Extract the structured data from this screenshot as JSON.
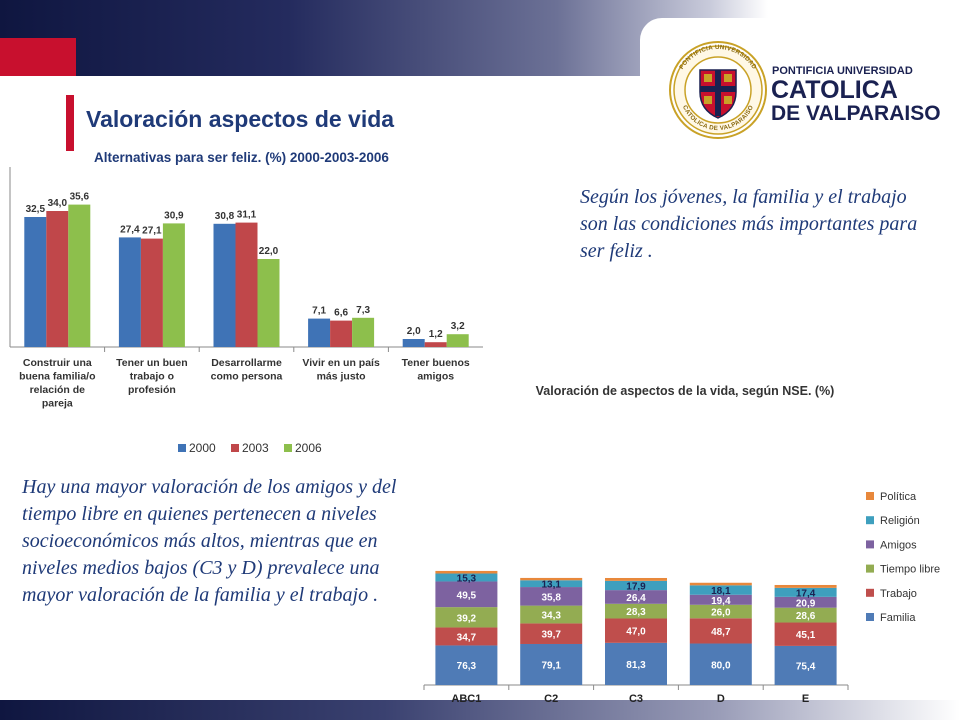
{
  "slide": {
    "title": "Valoración aspectos de vida",
    "paragraph_1": "Según los jóvenes, la familia y el trabajo son las condiciones más importantes para ser feliz .",
    "paragraph_2": "Hay una mayor valoración de los amigos y del tiempo libre en quienes pertenecen a niveles socioeconómicos más altos, mientras que en niveles medios bajos  (C3 y D) prevalece una mayor valoración de la familia y el trabajo ."
  },
  "logo": {
    "line_1": "PONTIFICIA UNIVERSIDAD",
    "line_2": "CATOLICA",
    "line_3": "DE VALPARAISO",
    "seal_text_top": "PONTIFICIA UNIVERSIDAD",
    "seal_text_bottom": "CATOLICA DE VALPARAISO",
    "colors": {
      "red": "#c8102e",
      "gold": "#c9a227",
      "navy": "#1a2151"
    }
  },
  "colors": {
    "accent_red": "#c8102e",
    "title_blue": "#1f3a78",
    "s2000": "#3f73b6",
    "s2003": "#c0474a",
    "s2006": "#8dbf4c",
    "familia": "#4f7bb6",
    "trabajo": "#bf4e4c",
    "tiempo_libre": "#93ac52",
    "amigos": "#7d62a0",
    "religion": "#3e9fbe",
    "politica": "#e8883b"
  },
  "chart_data": [
    {
      "type": "bar",
      "title": "Alternativas para ser feliz. (%) 2000-2003-2006",
      "categories": [
        [
          "Construir una",
          "buena familia/o",
          "relación de",
          "pareja"
        ],
        [
          "Tener un buen",
          "trabajo o",
          "profesión"
        ],
        [
          "Desarrollarme",
          "como persona"
        ],
        [
          "Vivir en un país",
          "más justo"
        ],
        [
          "Tener buenos",
          "amigos"
        ]
      ],
      "series": [
        {
          "name": "2000",
          "values": [
            32.5,
            27.4,
            30.8,
            7.1,
            2.0
          ],
          "labels": [
            "32,5",
            "27,4",
            "30,8",
            "7,1",
            "2,0"
          ]
        },
        {
          "name": "2003",
          "values": [
            34.0,
            27.1,
            31.1,
            6.6,
            1.2
          ],
          "labels": [
            "34,0",
            "27,1",
            "31,1",
            "6,6",
            "1,2"
          ]
        },
        {
          "name": "2006",
          "values": [
            35.6,
            30.9,
            22.0,
            7.3,
            3.2
          ],
          "labels": [
            "35,6",
            "30,9",
            "22,0",
            "7,3",
            "3,2"
          ]
        }
      ],
      "ylim": [
        0,
        40
      ],
      "grid": false,
      "legend_position": "bottom"
    },
    {
      "type": "bar",
      "stacked": true,
      "title": "Valoración de aspectos de la vida, según NSE. (%)",
      "categories": [
        "ABC1",
        "C2",
        "C3",
        "D",
        "E"
      ],
      "series": [
        {
          "name": "Familia",
          "values": [
            76.3,
            79.1,
            81.3,
            80.0,
            75.4
          ],
          "labels": [
            "76,3",
            "79,1",
            "81,3",
            "80,0",
            "75,4"
          ]
        },
        {
          "name": "Trabajo",
          "values": [
            34.7,
            39.7,
            47.0,
            48.7,
            45.1
          ],
          "labels": [
            "34,7",
            "39,7",
            "47,0",
            "48,7",
            "45,1"
          ]
        },
        {
          "name": "Tiempo libre",
          "values": [
            39.2,
            34.3,
            28.3,
            26.0,
            28.6
          ],
          "labels": [
            "39,2",
            "34,3",
            "28,3",
            "26,0",
            "28,6"
          ]
        },
        {
          "name": "Amigos",
          "values": [
            49.5,
            35.8,
            26.4,
            19.4,
            20.9
          ],
          "labels": [
            "49,5",
            "35,8",
            "26,4",
            "19,4",
            "20,9"
          ]
        },
        {
          "name": "Religión",
          "values": [
            15.3,
            13.1,
            17.9,
            18.1,
            17.4
          ],
          "labels": [
            "15,3",
            "13,1",
            "17,9",
            "18,1",
            "17,4"
          ]
        },
        {
          "name": "Política",
          "values": [
            5.0,
            4.5,
            5.5,
            5.0,
            5.5
          ],
          "labels": [
            "",
            "",
            "",
            "",
            ""
          ]
        }
      ],
      "grid": false,
      "legend_position": "right"
    }
  ]
}
